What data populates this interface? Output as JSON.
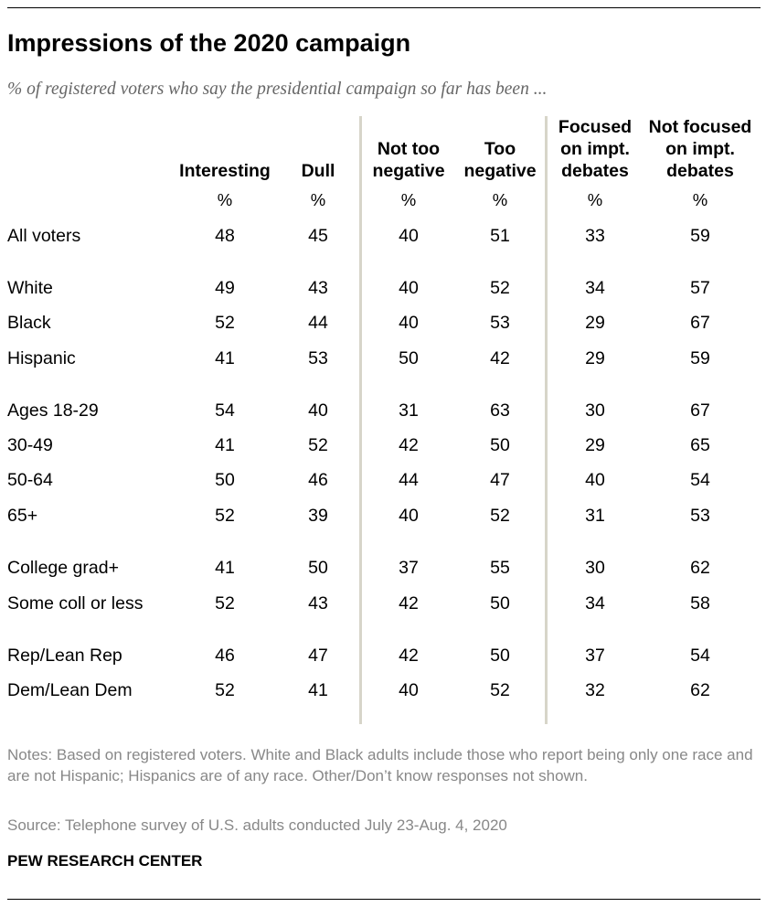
{
  "title": "Impressions of the 2020 campaign",
  "subtitle": "% of registered voters who say the presidential campaign so far has been ...",
  "chart_data": {
    "type": "table",
    "unit_label": "%",
    "columns": [
      {
        "name": "Interesting",
        "lines": [
          "Interesting"
        ]
      },
      {
        "name": "Dull",
        "lines": [
          "Dull"
        ]
      },
      {
        "name": "Not too negative",
        "lines": [
          "Not too",
          "negative"
        ]
      },
      {
        "name": "Too negative",
        "lines": [
          "Too",
          "negative"
        ]
      },
      {
        "name": "Focused on impt. debates",
        "lines": [
          "Focused",
          "on impt.",
          "debates"
        ]
      },
      {
        "name": "Not focused on impt. debates",
        "lines": [
          "Not focused",
          "on impt.",
          "debates"
        ]
      }
    ],
    "rows": [
      {
        "label": "All voters",
        "values": [
          48,
          45,
          40,
          51,
          33,
          59
        ]
      },
      {
        "label": "White",
        "values": [
          49,
          43,
          40,
          52,
          34,
          57
        ]
      },
      {
        "label": "Black",
        "values": [
          52,
          44,
          40,
          53,
          29,
          67
        ]
      },
      {
        "label": "Hispanic",
        "values": [
          41,
          53,
          50,
          42,
          29,
          59
        ]
      },
      {
        "label": "Ages 18-29",
        "values": [
          54,
          40,
          31,
          63,
          30,
          67
        ]
      },
      {
        "label": "30-49",
        "values": [
          41,
          52,
          42,
          50,
          29,
          65
        ]
      },
      {
        "label": "50-64",
        "values": [
          50,
          46,
          44,
          47,
          40,
          54
        ]
      },
      {
        "label": "65+",
        "values": [
          52,
          39,
          40,
          52,
          31,
          53
        ]
      },
      {
        "label": "College grad+",
        "values": [
          41,
          50,
          37,
          55,
          30,
          62
        ]
      },
      {
        "label": "Some coll or less",
        "values": [
          52,
          43,
          42,
          50,
          34,
          58
        ]
      },
      {
        "label": "Rep/Lean Rep",
        "values": [
          46,
          47,
          42,
          50,
          37,
          54
        ]
      },
      {
        "label": "Dem/Lean Dem",
        "values": [
          52,
          41,
          40,
          52,
          32,
          62
        ]
      }
    ]
  },
  "notes": "Notes: Based on registered voters. White and Black adults include those who report being only one race and are not Hispanic; Hispanics are of any race. Other/Don’t know responses not shown.",
  "source": "Source: Telephone survey of U.S. adults conducted July 23-Aug. 4, 2020",
  "organization": "PEW RESEARCH CENTER",
  "colors": {
    "divider": "#d7d5c9",
    "note_text": "#888888",
    "subtitle_text": "#666666"
  }
}
